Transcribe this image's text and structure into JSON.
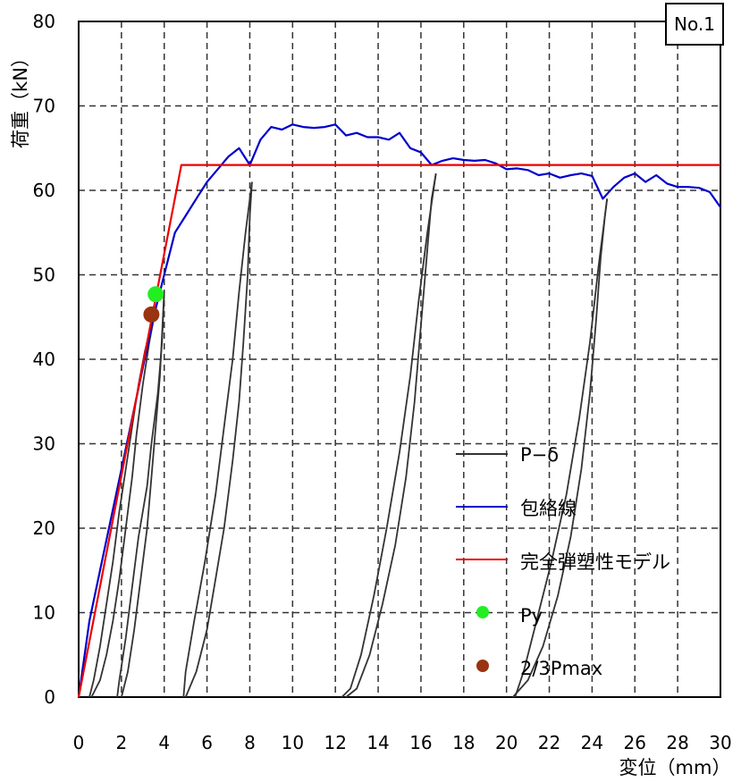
{
  "chart_data": {
    "type": "line",
    "badge": "No.1",
    "xlabel": "変位（mm）",
    "ylabel": "荷重（kN）",
    "xlim": [
      0,
      30
    ],
    "ylim": [
      0,
      80
    ],
    "x_ticks": [
      "0",
      "2",
      "4",
      "6",
      "8",
      "10",
      "12",
      "14",
      "16",
      "18",
      "20",
      "22",
      "24",
      "26",
      "28",
      "30"
    ],
    "y_ticks": [
      "0",
      "10",
      "20",
      "30",
      "40",
      "50",
      "60",
      "70",
      "80"
    ],
    "grid": true,
    "legend_position": "bottom-right",
    "colors": {
      "pd": "#333333",
      "envelope": "#0000cc",
      "model": "#ee0000",
      "py": "#22ee22",
      "pmax": "#993311"
    },
    "series": [
      {
        "name": "P−δ",
        "kind": "line",
        "segments": [
          [
            [
              0.5,
              0
            ],
            [
              0.7,
              2
            ],
            [
              1.0,
              6
            ],
            [
              1.3,
              11
            ],
            [
              1.6,
              16
            ],
            [
              1.9,
              22
            ],
            [
              2.2,
              27
            ],
            [
              2.5,
              32
            ],
            [
              2.8,
              37
            ],
            [
              3.1,
              41
            ],
            [
              3.4,
              44
            ],
            [
              3.6,
              46
            ]
          ],
          [
            [
              3.6,
              46
            ],
            [
              3.3,
              42
            ],
            [
              3.0,
              37
            ],
            [
              2.7,
              31
            ],
            [
              2.5,
              26
            ],
            [
              2.2,
              20
            ],
            [
              1.9,
              14
            ],
            [
              1.6,
              9
            ],
            [
              1.3,
              5
            ],
            [
              1.0,
              2
            ],
            [
              0.6,
              0
            ]
          ],
          [
            [
              2.0,
              0
            ],
            [
              2.3,
              3
            ],
            [
              2.6,
              8
            ],
            [
              2.9,
              14
            ],
            [
              3.2,
              20
            ],
            [
              3.4,
              26
            ],
            [
              3.6,
              32
            ],
            [
              3.8,
              38
            ],
            [
              3.9,
              43
            ],
            [
              4.0,
              48
            ]
          ],
          [
            [
              4.0,
              48
            ],
            [
              3.9,
              42
            ],
            [
              3.7,
              36
            ],
            [
              3.4,
              30
            ],
            [
              3.2,
              25
            ],
            [
              2.8,
              19
            ],
            [
              2.5,
              13
            ],
            [
              2.2,
              7
            ],
            [
              1.9,
              2
            ],
            [
              1.8,
              0
            ]
          ],
          [
            [
              5.0,
              0
            ],
            [
              5.5,
              3
            ],
            [
              6.0,
              8
            ],
            [
              6.4,
              14
            ],
            [
              6.8,
              20
            ],
            [
              7.2,
              28
            ],
            [
              7.5,
              35
            ],
            [
              7.7,
              42
            ],
            [
              7.9,
              50
            ],
            [
              8.0,
              57
            ],
            [
              8.1,
              61
            ]
          ],
          [
            [
              8.1,
              61
            ],
            [
              7.8,
              55
            ],
            [
              7.5,
              48
            ],
            [
              7.2,
              40
            ],
            [
              6.8,
              32
            ],
            [
              6.4,
              24
            ],
            [
              5.9,
              16
            ],
            [
              5.4,
              9
            ],
            [
              5.0,
              3
            ],
            [
              4.9,
              0
            ]
          ],
          [
            [
              12.5,
              0
            ],
            [
              13.0,
              1
            ],
            [
              13.6,
              5
            ],
            [
              14.2,
              11
            ],
            [
              14.8,
              18
            ],
            [
              15.3,
              26
            ],
            [
              15.7,
              35
            ],
            [
              16.0,
              44
            ],
            [
              16.3,
              53
            ],
            [
              16.5,
              59
            ],
            [
              16.7,
              62
            ]
          ],
          [
            [
              16.7,
              62
            ],
            [
              16.3,
              55
            ],
            [
              15.9,
              47
            ],
            [
              15.5,
              38
            ],
            [
              15.0,
              29
            ],
            [
              14.4,
              20
            ],
            [
              13.8,
              12
            ],
            [
              13.2,
              5
            ],
            [
              12.7,
              1
            ],
            [
              12.3,
              0
            ]
          ],
          [
            [
              20.3,
              0
            ],
            [
              21.0,
              2
            ],
            [
              21.7,
              6
            ],
            [
              22.4,
              12
            ],
            [
              23.0,
              19
            ],
            [
              23.5,
              27
            ],
            [
              23.9,
              36
            ],
            [
              24.2,
              45
            ],
            [
              24.4,
              52
            ],
            [
              24.6,
              57
            ],
            [
              24.7,
              59
            ]
          ],
          [
            [
              24.7,
              59
            ],
            [
              24.3,
              51
            ],
            [
              23.9,
              42
            ],
            [
              23.4,
              33
            ],
            [
              22.8,
              24
            ],
            [
              22.1,
              16
            ],
            [
              21.4,
              9
            ],
            [
              20.8,
              3
            ],
            [
              20.4,
              0
            ]
          ]
        ]
      },
      {
        "name": "包絡線",
        "kind": "line",
        "x": [
          0,
          0.5,
          1.0,
          1.5,
          2.0,
          2.5,
          3.0,
          3.5,
          4.0,
          4.5,
          5.0,
          5.5,
          6.0,
          6.5,
          7.0,
          7.5,
          8.0,
          8.5,
          9.0,
          9.5,
          10.0,
          10.5,
          11.0,
          11.5,
          12.0,
          12.5,
          13.0,
          13.5,
          14.0,
          14.5,
          15.0,
          15.5,
          16.0,
          16.5,
          17.0,
          17.5,
          18.0,
          18.5,
          19.0,
          19.5,
          20.0,
          20.5,
          21.0,
          21.5,
          22.0,
          22.5,
          23.0,
          23.5,
          24.0,
          24.5,
          25.0,
          25.5,
          26.0,
          26.5,
          27.0,
          27.5,
          28.0,
          28.5,
          29.0,
          29.5,
          30.0
        ],
        "y": [
          0,
          9,
          15,
          21,
          27,
          33,
          39,
          45,
          50,
          55,
          57,
          59,
          61,
          62.5,
          64,
          65,
          63,
          66,
          67.5,
          67.2,
          67.8,
          67.5,
          67.4,
          67.5,
          67.8,
          66.5,
          66.8,
          66.3,
          66.3,
          66.0,
          66.8,
          65.0,
          64.5,
          63.0,
          63.5,
          63.8,
          63.6,
          63.5,
          63.6,
          63.2,
          62.5,
          62.6,
          62.4,
          61.8,
          62.0,
          61.5,
          61.8,
          62.0,
          61.7,
          59.0,
          60.4,
          61.5,
          62.0,
          61.0,
          61.8,
          60.8,
          60.4,
          60.4,
          60.3,
          59.8,
          58.0
        ]
      },
      {
        "name": "完全弾塑性モデル",
        "kind": "line",
        "x": [
          0,
          4.8,
          30
        ],
        "y": [
          0,
          63,
          63
        ]
      },
      {
        "name": "Py",
        "kind": "marker",
        "x": [
          3.6
        ],
        "y": [
          47.7
        ]
      },
      {
        "name": "2/3Pmax",
        "kind": "marker",
        "x": [
          3.4
        ],
        "y": [
          45.3
        ]
      }
    ]
  }
}
